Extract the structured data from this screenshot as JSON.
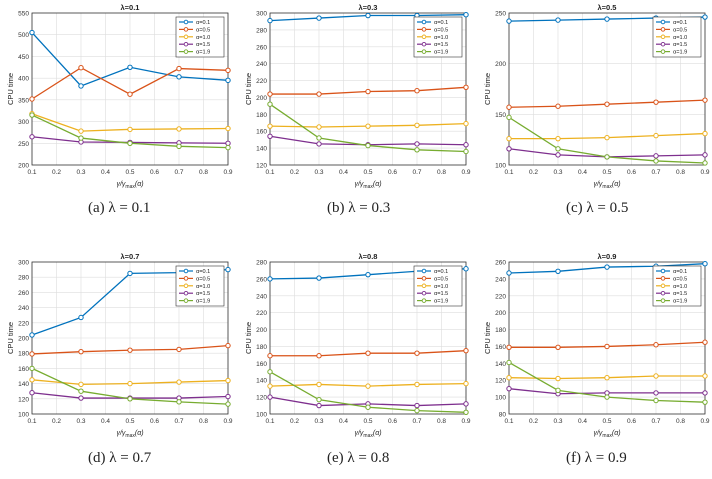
{
  "colors": {
    "alpha0.1": "#0072bd",
    "alpha0.5": "#d95319",
    "alpha1.0": "#edb120",
    "alpha1.5": "#7e2f8e",
    "alpha1.9": "#77ac30",
    "axis": "#333333",
    "grid": "#dddddd"
  },
  "chart_data": [
    {
      "type": "line",
      "title": "λ=0.1",
      "caption": "(a)  λ = 0.1",
      "xlabel": "γ/γ_max(α)",
      "ylabel": "CPU time",
      "x": [
        0.1,
        0.3,
        0.5,
        0.7,
        0.9
      ],
      "xlim": [
        0.1,
        0.9
      ],
      "xticks": [
        "0.1",
        "0.2",
        "0.3",
        "0.4",
        "0.5",
        "0.6",
        "0.7",
        "0.8",
        "0.9"
      ],
      "ylim": [
        200,
        550
      ],
      "yticks": [
        "200",
        "250",
        "300",
        "350",
        "400",
        "450",
        "500",
        "550"
      ],
      "grid": true,
      "legend_position": "top-right",
      "series": [
        {
          "name": "α=0.1",
          "values": [
            505,
            382,
            425,
            403,
            395
          ]
        },
        {
          "name": "α=0.5",
          "values": [
            352,
            424,
            363,
            422,
            418
          ]
        },
        {
          "name": "α=1.0",
          "values": [
            318,
            278,
            282,
            283,
            284
          ]
        },
        {
          "name": "α=1.5",
          "values": [
            265,
            253,
            252,
            251,
            250
          ]
        },
        {
          "name": "α=1.9",
          "values": [
            315,
            262,
            250,
            243,
            240
          ]
        }
      ]
    },
    {
      "type": "line",
      "title": "λ=0.3",
      "caption": "(b)  λ = 0.3",
      "xlabel": "γ/γ_max(α)",
      "ylabel": "CPU time",
      "x": [
        0.1,
        0.3,
        0.5,
        0.7,
        0.9
      ],
      "xlim": [
        0.1,
        0.9
      ],
      "xticks": [
        "0.1",
        "0.2",
        "0.3",
        "0.4",
        "0.5",
        "0.6",
        "0.7",
        "0.8",
        "0.9"
      ],
      "ylim": [
        120,
        300
      ],
      "yticks": [
        "120",
        "140",
        "160",
        "180",
        "200",
        "220",
        "240",
        "260",
        "280",
        "300"
      ],
      "grid": true,
      "legend_position": "top-right",
      "series": [
        {
          "name": "α=0.1",
          "values": [
            291,
            294,
            297,
            297,
            298
          ]
        },
        {
          "name": "α=0.5",
          "values": [
            204,
            204,
            207,
            208,
            212
          ]
        },
        {
          "name": "α=1.0",
          "values": [
            166,
            165,
            166,
            167,
            169
          ]
        },
        {
          "name": "α=1.5",
          "values": [
            154,
            145,
            144,
            145,
            144
          ]
        },
        {
          "name": "α=1.9",
          "values": [
            192,
            152,
            143,
            138,
            136
          ]
        }
      ]
    },
    {
      "type": "line",
      "title": "λ=0.5",
      "caption": "(c)  λ = 0.5",
      "xlabel": "γ/γ_max(α)",
      "ylabel": "CPU time",
      "x": [
        0.1,
        0.3,
        0.5,
        0.7,
        0.9
      ],
      "xlim": [
        0.1,
        0.9
      ],
      "xticks": [
        "0.1",
        "0.2",
        "0.3",
        "0.4",
        "0.5",
        "0.6",
        "0.7",
        "0.8",
        "0.9"
      ],
      "ylim": [
        100,
        250
      ],
      "yticks": [
        "100",
        "150",
        "200",
        "250"
      ],
      "grid": true,
      "legend_position": "top-right",
      "series": [
        {
          "name": "α=0.1",
          "values": [
            242,
            243,
            244,
            245,
            246
          ]
        },
        {
          "name": "α=0.5",
          "values": [
            157,
            158,
            160,
            162,
            164
          ]
        },
        {
          "name": "α=1.0",
          "values": [
            126,
            126,
            127,
            129,
            131
          ]
        },
        {
          "name": "α=1.5",
          "values": [
            116,
            110,
            108,
            109,
            110
          ]
        },
        {
          "name": "α=1.9",
          "values": [
            147,
            116,
            108,
            104,
            102
          ]
        }
      ]
    },
    {
      "type": "line",
      "title": "λ=0.7",
      "caption": "(d)  λ = 0.7",
      "xlabel": "γ/γ_max(α)",
      "ylabel": "CPU time",
      "x": [
        0.1,
        0.3,
        0.5,
        0.7,
        0.9
      ],
      "xlim": [
        0.1,
        0.9
      ],
      "xticks": [
        "0.1",
        "0.2",
        "0.3",
        "0.4",
        "0.5",
        "0.6",
        "0.7",
        "0.8",
        "0.9"
      ],
      "ylim": [
        100,
        300
      ],
      "yticks": [
        "100",
        "120",
        "140",
        "160",
        "180",
        "200",
        "220",
        "240",
        "260",
        "280",
        "300"
      ],
      "grid": true,
      "legend_position": "top-right",
      "series": [
        {
          "name": "α=0.1",
          "values": [
            204,
            227,
            285,
            286,
            290
          ]
        },
        {
          "name": "α=0.5",
          "values": [
            179,
            182,
            184,
            185,
            190
          ]
        },
        {
          "name": "α=1.0",
          "values": [
            145,
            139,
            140,
            142,
            144
          ]
        },
        {
          "name": "α=1.5",
          "values": [
            128,
            121,
            121,
            121,
            123
          ]
        },
        {
          "name": "α=1.9",
          "values": [
            160,
            130,
            120,
            116,
            113
          ]
        }
      ]
    },
    {
      "type": "line",
      "title": "λ=0.8",
      "caption": "(e)  λ = 0.8",
      "xlabel": "γ/γ_max(α)",
      "ylabel": "CPU time",
      "x": [
        0.1,
        0.3,
        0.5,
        0.7,
        0.9
      ],
      "xlim": [
        0.1,
        0.9
      ],
      "xticks": [
        "0.1",
        "0.2",
        "0.3",
        "0.4",
        "0.5",
        "0.6",
        "0.7",
        "0.8",
        "0.9"
      ],
      "ylim": [
        100,
        280
      ],
      "yticks": [
        "100",
        "120",
        "140",
        "160",
        "180",
        "200",
        "220",
        "240",
        "260",
        "280"
      ],
      "grid": true,
      "legend_position": "top-right",
      "series": [
        {
          "name": "α=0.1",
          "values": [
            260,
            261,
            265,
            269,
            272
          ]
        },
        {
          "name": "α=0.5",
          "values": [
            169,
            169,
            172,
            172,
            175
          ]
        },
        {
          "name": "α=1.0",
          "values": [
            133,
            135,
            133,
            135,
            136
          ]
        },
        {
          "name": "α=1.5",
          "values": [
            120,
            110,
            112,
            110,
            112
          ]
        },
        {
          "name": "α=1.9",
          "values": [
            150,
            117,
            108,
            104,
            102
          ]
        }
      ]
    },
    {
      "type": "line",
      "title": "λ=0.9",
      "caption": "(f)  λ = 0.9",
      "xlabel": "γ/γ_max(α)",
      "ylabel": "CPU time",
      "x": [
        0.1,
        0.3,
        0.5,
        0.7,
        0.9
      ],
      "xlim": [
        0.1,
        0.9
      ],
      "xticks": [
        "0.1",
        "0.2",
        "0.3",
        "0.4",
        "0.5",
        "0.6",
        "0.7",
        "0.8",
        "0.9"
      ],
      "ylim": [
        80,
        260
      ],
      "yticks": [
        "80",
        "100",
        "120",
        "140",
        "160",
        "180",
        "200",
        "220",
        "240",
        "260"
      ],
      "grid": true,
      "legend_position": "top-right",
      "series": [
        {
          "name": "α=0.1",
          "values": [
            247,
            249,
            254,
            255,
            258
          ]
        },
        {
          "name": "α=0.5",
          "values": [
            159,
            159,
            160,
            162,
            165
          ]
        },
        {
          "name": "α=1.0",
          "values": [
            123,
            122,
            123,
            125,
            125
          ]
        },
        {
          "name": "α=1.5",
          "values": [
            110,
            104,
            105,
            105,
            105
          ]
        },
        {
          "name": "α=1.9",
          "values": [
            141,
            108,
            100,
            96,
            94
          ]
        }
      ]
    }
  ]
}
